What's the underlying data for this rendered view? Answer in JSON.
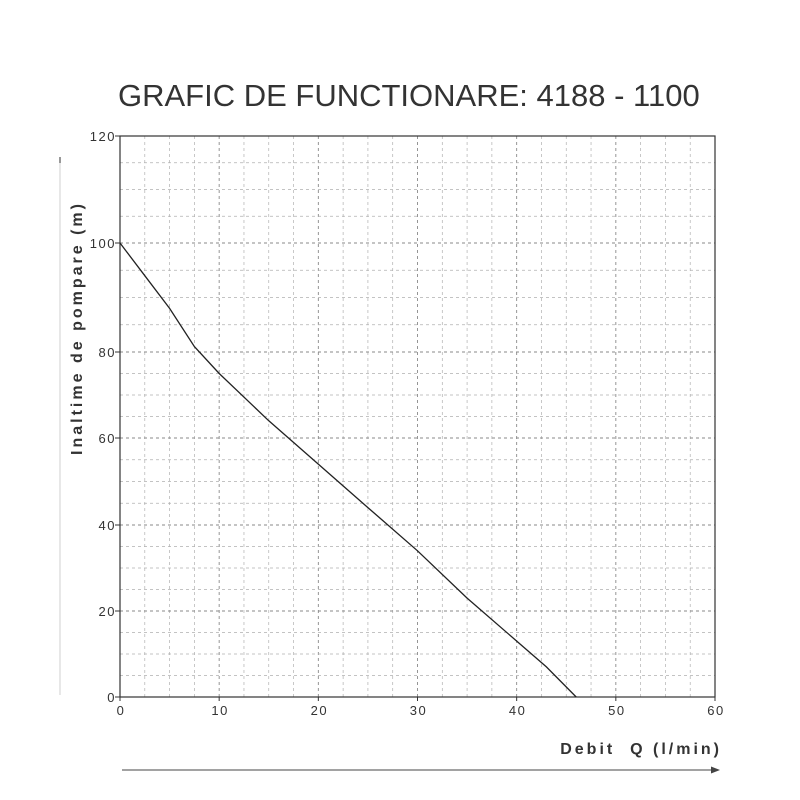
{
  "chart_data": {
    "type": "line",
    "title": "GRAFIC DE FUNCTIONARE: 4188 - 1100",
    "xlabel": "Debit  Q (l/min)",
    "ylabel": "Inaltime de pompare (m)",
    "xlim": [
      0,
      60
    ],
    "ylim": [
      0,
      120
    ],
    "xticks": [
      0,
      10,
      20,
      30,
      40,
      50,
      60
    ],
    "yticks": [
      0,
      20,
      40,
      60,
      80,
      100,
      120
    ],
    "grid": true,
    "x": [
      0,
      2.5,
      5,
      7.5,
      10,
      15,
      20,
      25,
      30,
      35,
      40,
      43,
      46
    ],
    "y": [
      100,
      94,
      88,
      81,
      75,
      64,
      54,
      44,
      34,
      23,
      13,
      7,
      0
    ],
    "colors": {
      "line": "#222222",
      "grid_minor": "#b0b0b0",
      "grid_major": "#8a8a8a",
      "axis": "#333333"
    }
  }
}
